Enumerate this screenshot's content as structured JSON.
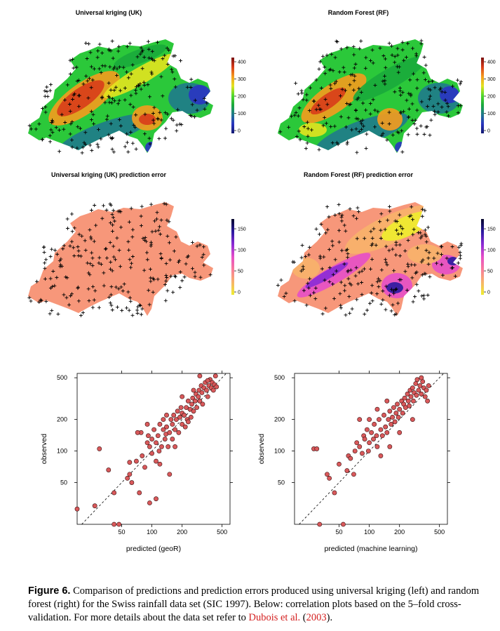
{
  "maps": [
    {
      "title": "Universal kriging (UK)",
      "colorbar": {
        "ticks": [
          "400",
          "300",
          "200",
          "100",
          "0"
        ],
        "palette": [
          "#7a0f0f",
          "#d83c1a",
          "#f59b1e",
          "#e3e31f",
          "#52d92b",
          "#1aaa3c",
          "#1f7a8c",
          "#2a34c2",
          "#121a70"
        ]
      }
    },
    {
      "title": "Random Forest (RF)",
      "colorbar": {
        "ticks": [
          "400",
          "300",
          "200",
          "100",
          "0"
        ],
        "palette": [
          "#7a0f0f",
          "#d83c1a",
          "#f59b1e",
          "#e3e31f",
          "#52d92b",
          "#1aaa3c",
          "#1f7a8c",
          "#2a34c2",
          "#121a70"
        ]
      }
    },
    {
      "title": "Universal kriging (UK) prediction error",
      "colorbar": {
        "ticks": [
          "150",
          "100",
          "50",
          "0"
        ],
        "palette": [
          "#06062a",
          "#2a1aa0",
          "#8b2bd6",
          "#e64fc8",
          "#f97c9a",
          "#f7b36a",
          "#eeed2e"
        ]
      }
    },
    {
      "title": "Random Forest (RF) prediction error",
      "colorbar": {
        "ticks": [
          "150",
          "100",
          "50",
          "0"
        ],
        "palette": [
          "#06062a",
          "#2a1aa0",
          "#8b2bd6",
          "#e64fc8",
          "#f97c9a",
          "#f7b36a",
          "#eeed2e"
        ]
      }
    }
  ],
  "chart_data": [
    {
      "type": "scatter",
      "xlabel": "predicted (geoR)",
      "ylabel": "observed",
      "xscale": "log",
      "yscale": "log",
      "xticks": [
        50,
        100,
        200,
        500
      ],
      "yticks": [
        50,
        100,
        200,
        500
      ],
      "xlim": [
        18,
        600
      ],
      "ylim": [
        20,
        550
      ],
      "reference_line": "1:1 dashed",
      "point_color": "#d9595b",
      "points": [
        [
          18,
          28
        ],
        [
          27,
          30
        ],
        [
          30,
          105
        ],
        [
          37,
          66
        ],
        [
          42,
          40
        ],
        [
          42,
          20
        ],
        [
          47,
          20
        ],
        [
          57,
          55
        ],
        [
          63,
          50
        ],
        [
          60,
          78
        ],
        [
          70,
          80
        ],
        [
          78,
          150
        ],
        [
          72,
          150
        ],
        [
          80,
          90
        ],
        [
          85,
          70
        ],
        [
          90,
          120
        ],
        [
          92,
          140
        ],
        [
          95,
          110
        ],
        [
          100,
          95
        ],
        [
          100,
          130
        ],
        [
          105,
          160
        ],
        [
          110,
          120
        ],
        [
          110,
          80
        ],
        [
          115,
          140
        ],
        [
          118,
          100
        ],
        [
          120,
          180
        ],
        [
          125,
          110
        ],
        [
          130,
          160
        ],
        [
          130,
          200
        ],
        [
          135,
          130
        ],
        [
          138,
          145
        ],
        [
          140,
          170
        ],
        [
          145,
          110
        ],
        [
          150,
          150
        ],
        [
          155,
          200
        ],
        [
          160,
          130
        ],
        [
          160,
          180
        ],
        [
          165,
          220
        ],
        [
          170,
          160
        ],
        [
          175,
          200
        ],
        [
          180,
          240
        ],
        [
          185,
          150
        ],
        [
          190,
          210
        ],
        [
          195,
          260
        ],
        [
          200,
          180
        ],
        [
          200,
          230
        ],
        [
          210,
          220
        ],
        [
          215,
          170
        ],
        [
          220,
          260
        ],
        [
          225,
          200
        ],
        [
          230,
          300
        ],
        [
          240,
          250
        ],
        [
          245,
          210
        ],
        [
          250,
          280
        ],
        [
          255,
          320
        ],
        [
          260,
          240
        ],
        [
          270,
          300
        ],
        [
          275,
          350
        ],
        [
          280,
          260
        ],
        [
          290,
          330
        ],
        [
          295,
          380
        ],
        [
          300,
          300
        ],
        [
          310,
          420
        ],
        [
          315,
          360
        ],
        [
          320,
          280
        ],
        [
          330,
          400
        ],
        [
          340,
          450
        ],
        [
          350,
          380
        ],
        [
          360,
          330
        ],
        [
          370,
          420
        ],
        [
          380,
          480
        ],
        [
          390,
          400
        ],
        [
          400,
          450
        ],
        [
          410,
          380
        ],
        [
          420,
          430
        ],
        [
          430,
          520
        ],
        [
          440,
          410
        ],
        [
          95,
          32
        ],
        [
          140,
          220
        ],
        [
          170,
          110
        ],
        [
          230,
          190
        ],
        [
          60,
          60
        ],
        [
          90,
          180
        ],
        [
          300,
          520
        ],
        [
          260,
          380
        ],
        [
          360,
          470
        ],
        [
          120,
          75
        ],
        [
          200,
          330
        ],
        [
          150,
          60
        ],
        [
          75,
          40
        ],
        [
          110,
          35
        ]
      ]
    },
    {
      "type": "scatter",
      "xlabel": "predicted (machine learning)",
      "ylabel": "observed",
      "xscale": "log",
      "yscale": "log",
      "xticks": [
        50,
        100,
        200,
        500
      ],
      "yticks": [
        50,
        100,
        200,
        500
      ],
      "xlim": [
        18,
        600
      ],
      "ylim": [
        20,
        550
      ],
      "reference_line": "1:1 dashed",
      "point_color": "#d9595b",
      "points": [
        [
          28,
          105
        ],
        [
          30,
          105
        ],
        [
          32,
          20
        ],
        [
          38,
          60
        ],
        [
          40,
          55
        ],
        [
          45,
          40
        ],
        [
          50,
          75
        ],
        [
          55,
          20
        ],
        [
          60,
          65
        ],
        [
          62,
          90
        ],
        [
          65,
          85
        ],
        [
          70,
          60
        ],
        [
          72,
          100
        ],
        [
          75,
          120
        ],
        [
          80,
          110
        ],
        [
          85,
          95
        ],
        [
          88,
          140
        ],
        [
          90,
          130
        ],
        [
          95,
          160
        ],
        [
          98,
          100
        ],
        [
          100,
          120
        ],
        [
          105,
          150
        ],
        [
          110,
          130
        ],
        [
          112,
          180
        ],
        [
          118,
          140
        ],
        [
          120,
          110
        ],
        [
          125,
          200
        ],
        [
          130,
          160
        ],
        [
          135,
          140
        ],
        [
          140,
          220
        ],
        [
          145,
          170
        ],
        [
          150,
          150
        ],
        [
          155,
          200
        ],
        [
          160,
          240
        ],
        [
          165,
          180
        ],
        [
          170,
          210
        ],
        [
          175,
          260
        ],
        [
          180,
          190
        ],
        [
          185,
          230
        ],
        [
          190,
          280
        ],
        [
          195,
          210
        ],
        [
          200,
          250
        ],
        [
          210,
          300
        ],
        [
          215,
          230
        ],
        [
          220,
          280
        ],
        [
          225,
          320
        ],
        [
          230,
          260
        ],
        [
          240,
          350
        ],
        [
          245,
          300
        ],
        [
          250,
          270
        ],
        [
          255,
          380
        ],
        [
          260,
          330
        ],
        [
          270,
          400
        ],
        [
          275,
          300
        ],
        [
          280,
          360
        ],
        [
          290,
          440
        ],
        [
          295,
          340
        ],
        [
          300,
          480
        ],
        [
          310,
          380
        ],
        [
          320,
          420
        ],
        [
          330,
          350
        ],
        [
          340,
          460
        ],
        [
          350,
          400
        ],
        [
          360,
          330
        ],
        [
          370,
          380
        ],
        [
          380,
          300
        ],
        [
          390,
          420
        ],
        [
          120,
          250
        ],
        [
          150,
          300
        ],
        [
          100,
          200
        ],
        [
          160,
          110
        ],
        [
          80,
          200
        ],
        [
          200,
          150
        ],
        [
          130,
          90
        ],
        [
          270,
          200
        ],
        [
          330,
          500
        ]
      ]
    }
  ],
  "caption": {
    "label": "Figure 6.",
    "text_before_ref": " Comparison of predictions and prediction errors produced using universal kriging (left) and random forest (right) for the Swiss rainfall data set (SIC 1997). Below: correlation plots based on the 5–fold cross-validation. For more details about the data set refer to ",
    "ref_author": "Dubois et al.",
    "ref_open": " (",
    "ref_year": "2003",
    "ref_close": ")."
  }
}
